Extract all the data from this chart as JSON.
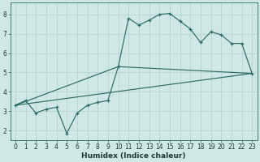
{
  "xlabel": "Humidex (Indice chaleur)",
  "bg_color": "#cfe8e5",
  "line_color": "#2e6b65",
  "grid_color": "#b8d8d5",
  "xlim": [
    -0.5,
    23.5
  ],
  "ylim": [
    1.5,
    8.6
  ],
  "yticks": [
    2,
    3,
    4,
    5,
    6,
    7,
    8
  ],
  "xticks": [
    0,
    1,
    2,
    3,
    4,
    5,
    6,
    7,
    8,
    9,
    10,
    11,
    12,
    13,
    14,
    15,
    16,
    17,
    18,
    19,
    20,
    21,
    22,
    23
  ],
  "series1_x": [
    0,
    1,
    2,
    3,
    4,
    5,
    6,
    7,
    8,
    9,
    10,
    11,
    12,
    13,
    14,
    15,
    16,
    17,
    18,
    19,
    20,
    21,
    22,
    23
  ],
  "series1_y": [
    3.3,
    3.55,
    2.9,
    3.1,
    3.2,
    1.85,
    2.9,
    3.3,
    3.45,
    3.55,
    5.3,
    7.8,
    7.45,
    7.7,
    8.0,
    8.05,
    7.65,
    7.25,
    6.55,
    7.1,
    6.95,
    6.5,
    6.5,
    4.95
  ],
  "series2_x": [
    0,
    23
  ],
  "series2_y": [
    3.3,
    4.95
  ],
  "series3_x": [
    0,
    10,
    23
  ],
  "series3_y": [
    3.3,
    5.3,
    4.95
  ],
  "xlabel_fontsize": 6.5,
  "tick_fontsize": 5.5
}
